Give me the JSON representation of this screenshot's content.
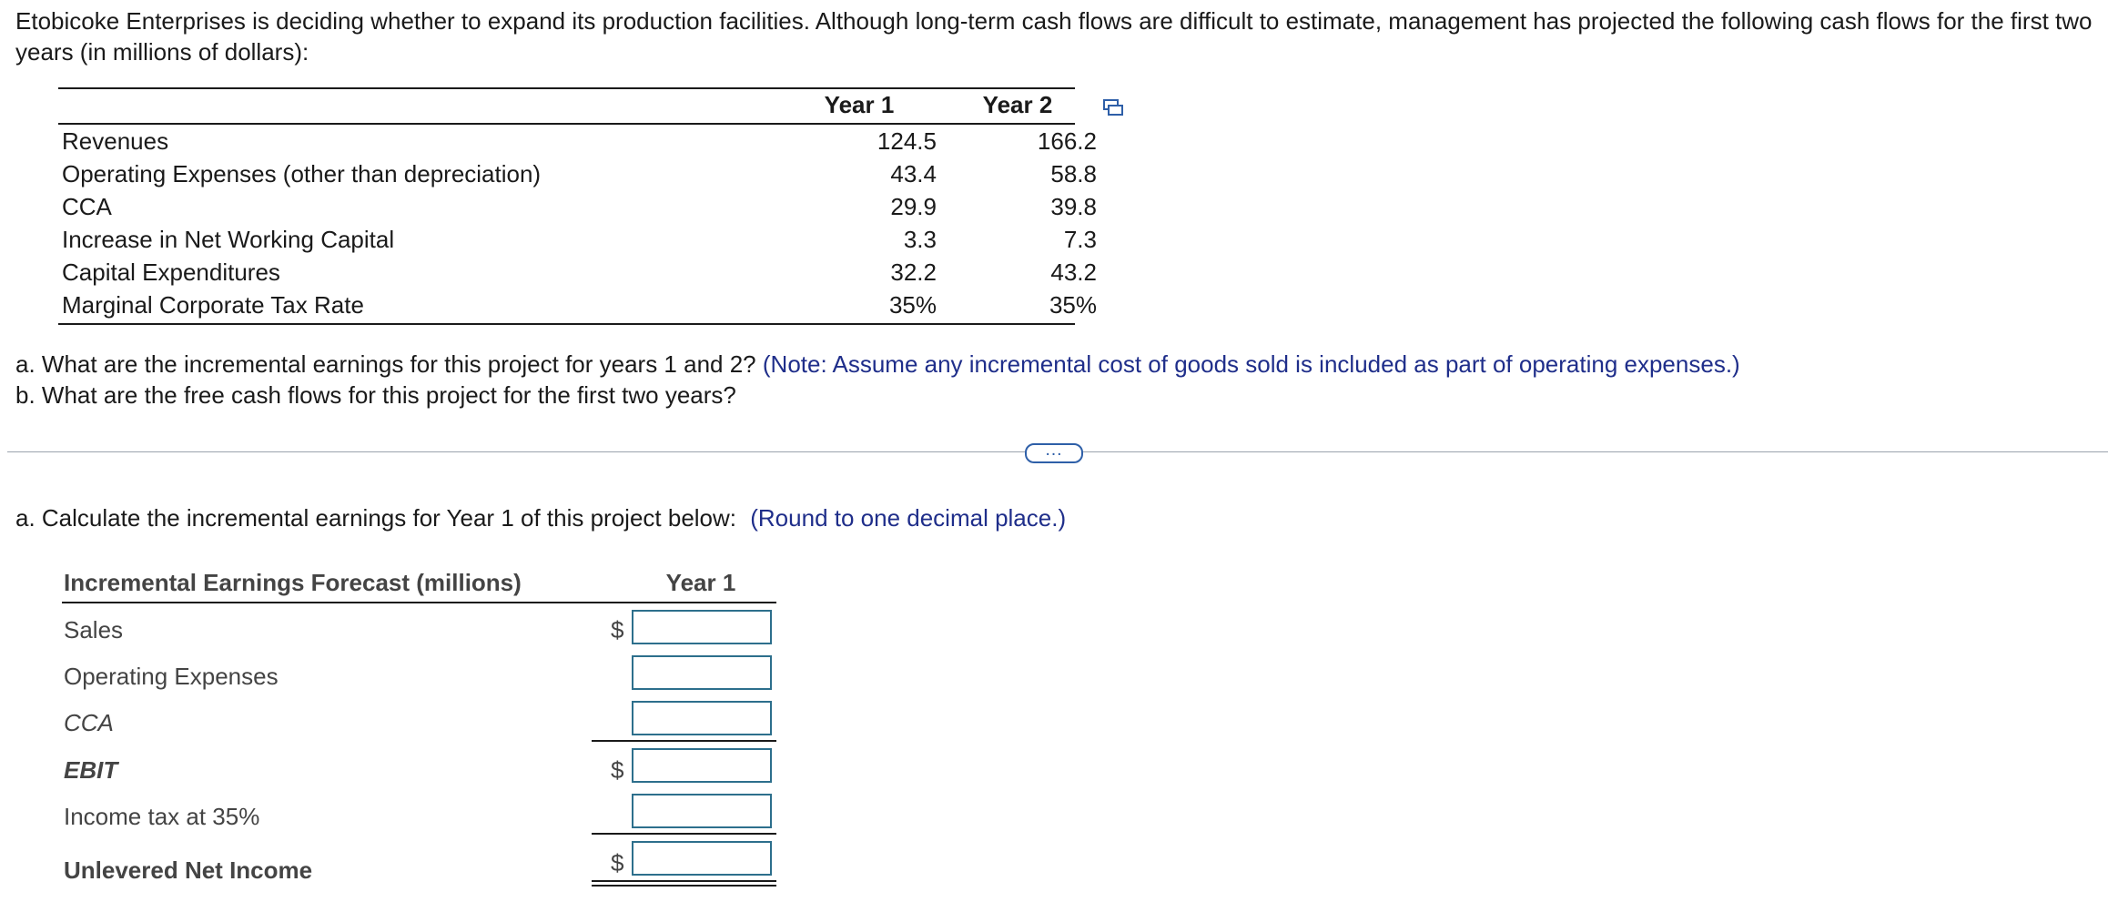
{
  "intro": {
    "line1": "Etobicoke Enterprises is deciding whether to expand its production facilities. Although long-term cash flows are difficult to estimate, management has projected the following cash flows for the first two",
    "line2": "years (in millions of dollars):"
  },
  "table1": {
    "headers": [
      "Year 1",
      "Year 2"
    ],
    "rows": [
      {
        "label": "Revenues",
        "y1": "124.5",
        "y2": "166.2"
      },
      {
        "label": "Operating Expenses (other than depreciation)",
        "y1": "43.4",
        "y2": "58.8"
      },
      {
        "label": "CCA",
        "y1": "29.9",
        "y2": "39.8"
      },
      {
        "label": "Increase in Net Working Capital",
        "y1": "3.3",
        "y2": "7.3"
      },
      {
        "label": "Capital Expenditures",
        "y1": "32.2",
        "y2": "43.2"
      },
      {
        "label": "Marginal Corporate Tax Rate",
        "y1": "35%",
        "y2": "35%"
      }
    ],
    "copy_icon": "copy-icon"
  },
  "questions": {
    "a": "a. What are the incremental earnings for this project for years 1 and 2?",
    "a_note": "(Note: Assume any incremental cost of goods sold is included as part of operating expenses.)",
    "b": "b. What are the free cash flows for this project for the first two years?"
  },
  "more_button": "…",
  "part_a": {
    "prompt": "a. Calculate the incremental earnings for Year 1 of this project below:",
    "note": "(Round to one decimal place.)"
  },
  "table2": {
    "header": "Incremental Earnings Forecast (millions)",
    "year": "Year 1",
    "currency": "$",
    "rows": {
      "sales": "Sales",
      "opex": "Operating Expenses",
      "cca": "CCA",
      "ebit": "EBIT",
      "tax": "Income tax at 35%",
      "uni": "Unlevered Net Income"
    }
  },
  "colors": {
    "note": "#1f2e8a",
    "input_border": "#2d6f8c",
    "button_accent": "#2e5fa8"
  }
}
